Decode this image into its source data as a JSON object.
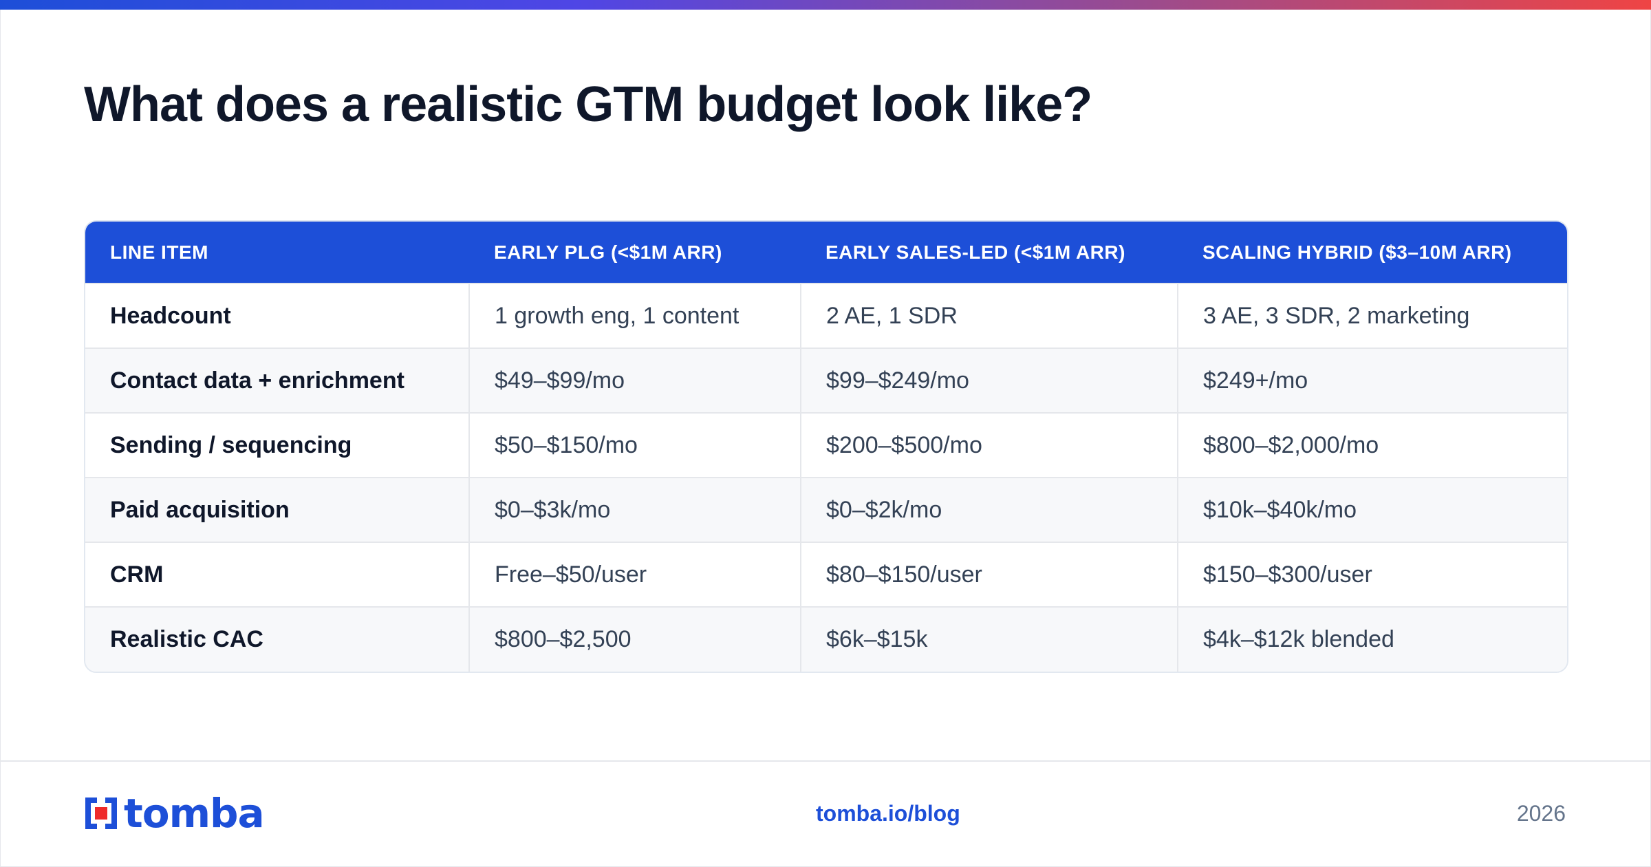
{
  "title": "What does a realistic GTM budget look like?",
  "colors": {
    "accent": "#1d4fd8",
    "gradient_start": "#1d4ed8",
    "gradient_end": "#ef4444",
    "heading": "#0f172a"
  },
  "table": {
    "headers": [
      "LINE ITEM",
      "EARLY PLG (<$1M ARR)",
      "EARLY SALES-LED (<$1M ARR)",
      "SCALING HYBRID ($3–10M ARR)"
    ],
    "rows": [
      [
        "Headcount",
        "1 growth eng, 1 content",
        "2 AE, 1 SDR",
        "3 AE, 3 SDR, 2 marketing"
      ],
      [
        "Contact data + enrichment",
        "$49–$99/mo",
        "$99–$249/mo",
        "$249+/mo"
      ],
      [
        "Sending / sequencing",
        "$50–$150/mo",
        "$200–$500/mo",
        "$800–$2,000/mo"
      ],
      [
        "Paid acquisition",
        "$0–$3k/mo",
        "$0–$2k/mo",
        "$10k–$40k/mo"
      ],
      [
        "CRM",
        "Free–$50/user",
        "$80–$150/user",
        "$150–$300/user"
      ],
      [
        "Realistic CAC",
        "$800–$2,500",
        "$6k–$15k",
        "$4k–$12k blended"
      ]
    ]
  },
  "footer": {
    "logo_text": "tomba",
    "link": "tomba.io/blog",
    "year": "2026"
  }
}
